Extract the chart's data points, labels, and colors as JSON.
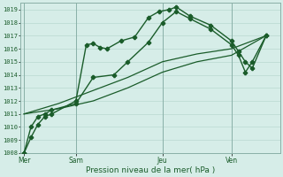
{
  "xlabel": "Pression niveau de la mer( hPa )",
  "background_color": "#d6ede8",
  "grid_color": "#b8d8d0",
  "line_color": "#1a5c2a",
  "spine_color": "#8ab0a8",
  "ylim": [
    1008,
    1019.5
  ],
  "yticks": [
    1008,
    1009,
    1010,
    1011,
    1012,
    1013,
    1014,
    1015,
    1016,
    1017,
    1018,
    1019
  ],
  "day_labels": [
    "Mer",
    "Sam",
    "Jeu",
    "Ven"
  ],
  "day_positions": [
    0,
    30,
    80,
    120
  ],
  "xlim": [
    -2,
    148
  ],
  "series": [
    {
      "x": [
        0,
        4,
        8,
        12,
        16,
        30,
        36,
        40,
        44,
        48,
        56,
        64,
        72,
        78,
        84,
        88,
        96,
        108,
        120,
        124,
        128,
        132,
        140
      ],
      "y": [
        1008.0,
        1009.2,
        1010.2,
        1010.8,
        1011.0,
        1012.0,
        1016.3,
        1016.4,
        1016.1,
        1016.0,
        1016.6,
        1016.9,
        1018.4,
        1018.85,
        1019.0,
        1019.2,
        1018.5,
        1017.8,
        1016.6,
        1015.8,
        1015.0,
        1014.5,
        1017.0
      ],
      "style": "-",
      "marker": "P",
      "markersize": 3.0,
      "linewidth": 1.0
    },
    {
      "x": [
        0,
        4,
        8,
        12,
        16,
        30,
        40,
        52,
        60,
        72,
        80,
        88,
        96,
        108,
        120,
        124,
        128,
        132,
        140
      ],
      "y": [
        1008.0,
        1010.0,
        1010.8,
        1011.0,
        1011.3,
        1011.8,
        1013.8,
        1014.0,
        1015.0,
        1016.5,
        1018.0,
        1018.85,
        1018.3,
        1017.5,
        1016.3,
        1015.5,
        1014.2,
        1015.0,
        1017.0
      ],
      "style": "-",
      "marker": "P",
      "markersize": 3.0,
      "linewidth": 1.0
    },
    {
      "x": [
        0,
        20,
        40,
        60,
        80,
        100,
        120,
        140
      ],
      "y": [
        1011.0,
        1011.8,
        1012.8,
        1013.8,
        1015.0,
        1015.6,
        1016.0,
        1017.0
      ],
      "style": "-",
      "marker": null,
      "markersize": 0,
      "linewidth": 0.9
    },
    {
      "x": [
        0,
        20,
        40,
        60,
        80,
        100,
        120,
        140
      ],
      "y": [
        1011.0,
        1011.4,
        1012.0,
        1013.0,
        1014.2,
        1015.0,
        1015.5,
        1017.0
      ],
      "style": "-",
      "marker": null,
      "markersize": 0,
      "linewidth": 0.9
    }
  ]
}
